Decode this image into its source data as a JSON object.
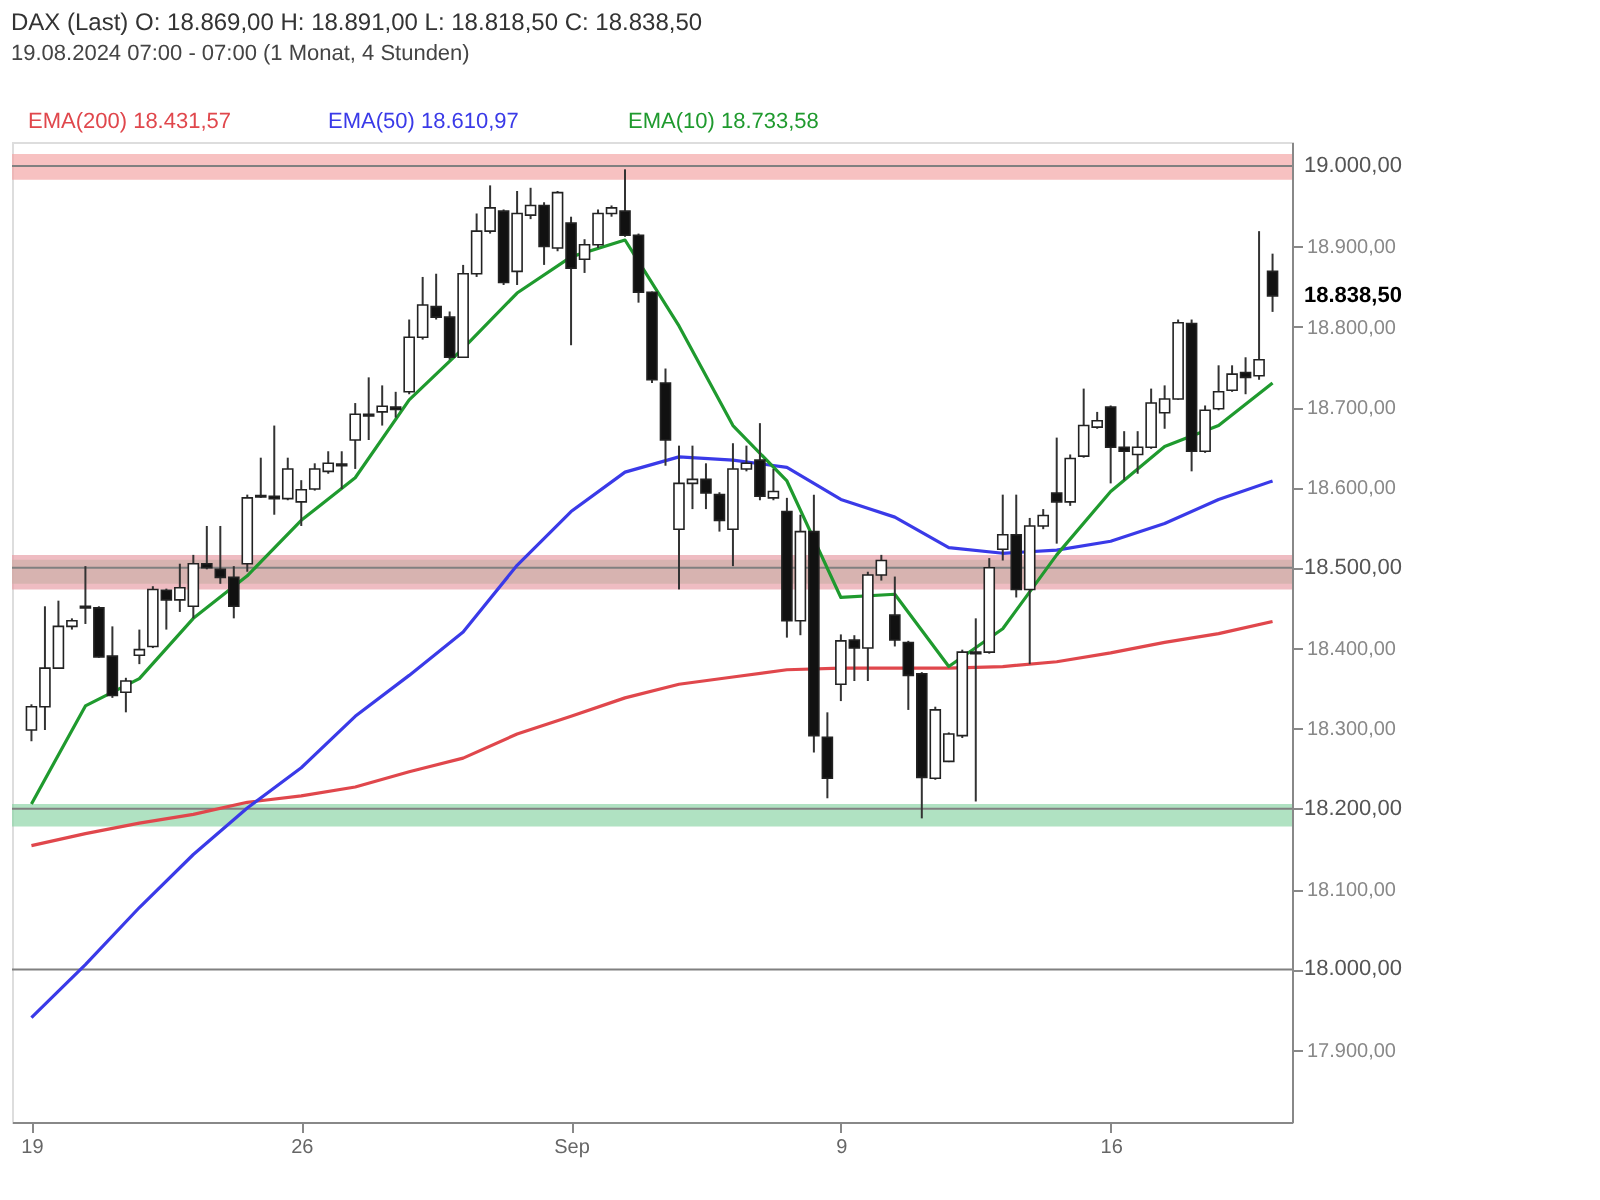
{
  "chart_data": {
    "type": "candlestick",
    "title": "DAX (Last)  O: 18.869,00  H: 18.891,00  L: 18.818,50  C: 18.838,50",
    "subtitle": "19.08.2024 07:00 - 07:00  (1 Monat, 4 Stunden)",
    "categories": [
      "19",
      null,
      null,
      null,
      null,
      null,
      null,
      null,
      null,
      null,
      null,
      null,
      null,
      null,
      null,
      null,
      null,
      null,
      null,
      null,
      "26",
      null,
      null,
      null,
      null,
      null,
      null,
      null,
      null,
      null,
      null,
      null,
      null,
      null,
      null,
      null,
      null,
      null,
      null,
      null,
      "Sep",
      null,
      null,
      null,
      null,
      null,
      null,
      null,
      null,
      null,
      null,
      null,
      null,
      null,
      null,
      null,
      null,
      null,
      null,
      null,
      "9",
      null,
      null,
      null,
      null,
      null,
      null,
      null,
      null,
      null,
      null,
      null,
      null,
      null,
      null,
      null,
      null,
      null,
      null,
      null,
      "16",
      null,
      null,
      null,
      null,
      null,
      null,
      null,
      null,
      null,
      null,
      null,
      null
    ],
    "ohlc": [
      [
        18298,
        18330,
        18284,
        18327
      ],
      [
        18327,
        18452,
        18298,
        18375
      ],
      [
        18375,
        18459,
        18375,
        18427
      ],
      [
        18427,
        18437,
        18423,
        18434
      ],
      [
        18450,
        18502,
        18430,
        18452
      ],
      [
        18450,
        18452,
        18388,
        18389
      ],
      [
        18390,
        18427,
        18338,
        18341
      ],
      [
        18345,
        18363,
        18320,
        18359
      ],
      [
        18391,
        18423,
        18380,
        18398
      ],
      [
        18402,
        18477,
        18400,
        18473
      ],
      [
        18472,
        18474,
        18423,
        18460
      ],
      [
        18460,
        18505,
        18445,
        18475
      ],
      [
        18452,
        18516,
        18437,
        18505
      ],
      [
        18505,
        18552,
        18498,
        18500
      ],
      [
        18498,
        18552,
        18480,
        18488
      ],
      [
        18488,
        18502,
        18437,
        18452
      ],
      [
        18505,
        18591,
        18495,
        18587
      ],
      [
        18590,
        18637,
        18587,
        18588
      ],
      [
        18589,
        18677,
        18566,
        18586
      ],
      [
        18586,
        18637,
        18584,
        18623
      ],
      [
        18582,
        18609,
        18552,
        18597
      ],
      [
        18598,
        18630,
        18596,
        18623
      ],
      [
        18620,
        18645,
        18617,
        18630
      ],
      [
        18629,
        18645,
        18598,
        18627
      ],
      [
        18659,
        18705,
        18623,
        18691
      ],
      [
        18689,
        18737,
        18659,
        18691
      ],
      [
        18694,
        18727,
        18677,
        18701
      ],
      [
        18700,
        18719,
        18687,
        18697
      ],
      [
        18719,
        18809,
        18716,
        18787
      ],
      [
        18787,
        18862,
        18784,
        18827
      ],
      [
        18825,
        18866,
        18809,
        18812
      ],
      [
        18812,
        18819,
        18759,
        18762
      ],
      [
        18762,
        18877,
        18762,
        18866
      ],
      [
        18866,
        18941,
        18862,
        18919
      ],
      [
        18919,
        18976,
        18916,
        18948
      ],
      [
        18944,
        18946,
        18852,
        18855
      ],
      [
        18869,
        18969,
        18852,
        18941
      ],
      [
        18939,
        18973,
        18934,
        18951
      ],
      [
        18951,
        18955,
        18877,
        18900
      ],
      [
        18898,
        18969,
        18894,
        18967
      ],
      [
        18929,
        18937,
        18777,
        18873
      ],
      [
        18884,
        18909,
        18867,
        18902
      ],
      [
        18902,
        18946,
        18898,
        18941
      ],
      [
        18941,
        18951,
        18937,
        18948
      ],
      [
        18944,
        18996,
        18912,
        18914
      ],
      [
        18914,
        18916,
        18830,
        18843
      ],
      [
        18843,
        18844,
        18730,
        18734
      ],
      [
        18730,
        18748,
        18627,
        18659
      ],
      [
        18548,
        18652,
        18473,
        18605
      ],
      [
        18605,
        18652,
        18573,
        18610
      ],
      [
        18610,
        18630,
        18573,
        18593
      ],
      [
        18591,
        18594,
        18545,
        18559
      ],
      [
        18548,
        18655,
        18502,
        18623
      ],
      [
        18623,
        18652,
        18620,
        18630
      ],
      [
        18634,
        18680,
        18584,
        18589
      ],
      [
        18587,
        18623,
        18584,
        18595
      ],
      [
        18570,
        18587,
        18413,
        18434
      ],
      [
        18434,
        18566,
        18416,
        18545
      ],
      [
        18545,
        18591,
        18270,
        18291
      ],
      [
        18289,
        18320,
        18213,
        18238
      ],
      [
        18355,
        18417,
        18334,
        18409
      ],
      [
        18410,
        18416,
        18359,
        18400
      ],
      [
        18400,
        18495,
        18359,
        18491
      ],
      [
        18491,
        18516,
        18484,
        18509
      ],
      [
        18441,
        18489,
        18402,
        18410
      ],
      [
        18407,
        18409,
        18323,
        18366
      ],
      [
        18368,
        18370,
        18188,
        18239
      ],
      [
        18238,
        18327,
        18236,
        18323
      ],
      [
        18259,
        18295,
        18258,
        18293
      ],
      [
        18291,
        18398,
        18288,
        18395
      ],
      [
        18393,
        18437,
        18209,
        18395
      ],
      [
        18395,
        18512,
        18393,
        18500
      ],
      [
        18523,
        18591,
        18509,
        18541
      ],
      [
        18541,
        18591,
        18463,
        18473
      ],
      [
        18473,
        18562,
        18380,
        18552
      ],
      [
        18552,
        18573,
        18548,
        18565
      ],
      [
        18593,
        18662,
        18530,
        18582
      ],
      [
        18582,
        18641,
        18577,
        18636
      ],
      [
        18639,
        18723,
        18637,
        18677
      ],
      [
        18675,
        18694,
        18673,
        18683
      ],
      [
        18700,
        18702,
        18605,
        18650
      ],
      [
        18650,
        18670,
        18609,
        18645
      ],
      [
        18641,
        18670,
        18617,
        18650
      ],
      [
        18650,
        18723,
        18648,
        18705
      ],
      [
        18693,
        18727,
        18673,
        18710
      ],
      [
        18710,
        18809,
        18709,
        18805
      ],
      [
        18804,
        18809,
        18620,
        18645
      ],
      [
        18645,
        18702,
        18643,
        18696
      ],
      [
        18698,
        18752,
        18696,
        18719
      ],
      [
        18721,
        18752,
        18719,
        18741
      ],
      [
        18743,
        18762,
        18716,
        18737
      ],
      [
        18739,
        18919,
        18734,
        18759
      ],
      [
        18869,
        18891,
        18818.5,
        18838.5
      ]
    ],
    "series": [
      {
        "name": "EMA(200) 18.431,57",
        "type": "line",
        "color": "#e0474c",
        "values": [
          18154,
          null,
          null,
          null,
          18169,
          null,
          null,
          null,
          18182,
          null,
          null,
          null,
          18193,
          null,
          null,
          null,
          18208,
          null,
          null,
          null,
          18216,
          null,
          null,
          null,
          18227,
          null,
          null,
          null,
          18246,
          null,
          null,
          null,
          18263,
          null,
          null,
          null,
          18293,
          null,
          null,
          null,
          18315,
          null,
          null,
          null,
          18338,
          null,
          null,
          null,
          18355,
          null,
          null,
          null,
          18364,
          null,
          null,
          null,
          18373,
          null,
          null,
          null,
          18375,
          null,
          null,
          null,
          18375,
          null,
          null,
          null,
          18375,
          null,
          null,
          null,
          18377,
          null,
          null,
          null,
          18383,
          null,
          null,
          null,
          18394,
          null,
          null,
          null,
          18407,
          null,
          null,
          null,
          18418,
          null,
          null,
          null,
          18433
        ]
      },
      {
        "name": "EMA(50) 18.610,97",
        "type": "line",
        "color": "#3a3ae8",
        "values": [
          17940,
          null,
          null,
          null,
          18006,
          null,
          null,
          null,
          18077,
          null,
          null,
          null,
          18143,
          null,
          null,
          null,
          18201,
          null,
          null,
          null,
          18251,
          null,
          null,
          null,
          18315,
          null,
          null,
          null,
          18366,
          null,
          null,
          null,
          18420,
          null,
          null,
          null,
          18503,
          null,
          null,
          null,
          18570,
          null,
          null,
          null,
          18619,
          null,
          null,
          null,
          18638,
          null,
          null,
          null,
          18634,
          null,
          null,
          null,
          18625,
          null,
          null,
          null,
          18585,
          null,
          null,
          null,
          18563,
          null,
          null,
          null,
          18525,
          null,
          null,
          null,
          18518,
          null,
          null,
          null,
          18522,
          null,
          null,
          null,
          18533,
          null,
          null,
          null,
          18555,
          null,
          null,
          null,
          18585,
          null,
          null,
          null,
          18608
        ]
      },
      {
        "name": "EMA(10) 18.733,58",
        "type": "line",
        "color": "#1f9a2e",
        "values": [
          18206,
          null,
          null,
          null,
          18328,
          null,
          null,
          null,
          18362,
          null,
          null,
          null,
          18437,
          null,
          null,
          null,
          18490,
          null,
          null,
          null,
          18559,
          null,
          null,
          null,
          18612,
          null,
          null,
          null,
          18709,
          null,
          null,
          null,
          18773,
          null,
          null,
          null,
          18842,
          null,
          null,
          null,
          18887,
          null,
          null,
          null,
          18908,
          null,
          null,
          null,
          18801,
          null,
          null,
          null,
          18677,
          null,
          null,
          null,
          18608,
          null,
          null,
          null,
          18463,
          null,
          null,
          null,
          18467,
          null,
          null,
          null,
          18377,
          null,
          null,
          null,
          18424,
          null,
          null,
          null,
          18516,
          null,
          null,
          null,
          18595,
          null,
          null,
          null,
          18651,
          null,
          null,
          null,
          18677,
          null,
          null,
          null,
          18730
        ]
      }
    ],
    "ylim": [
      17810,
      19030
    ],
    "yticks": [
      {
        "value": 17900,
        "label": "17.900,00"
      },
      {
        "value": 18000,
        "label": null
      },
      {
        "value": 18100,
        "label": "18.100,00"
      },
      {
        "value": 18200,
        "label": null
      },
      {
        "value": 18300,
        "label": "18.300,00"
      },
      {
        "value": 18400,
        "label": "18.400,00"
      },
      {
        "value": 18500,
        "label": null
      },
      {
        "value": 18600,
        "label": "18.600,00"
      },
      {
        "value": 18700,
        "label": "18.700,00"
      },
      {
        "value": 18800,
        "label": "18.800,00"
      },
      {
        "value": 18900,
        "label": "18.900,00"
      }
    ],
    "ref_lines": [
      {
        "axis": "y",
        "value": 19000,
        "label": "19.000,00",
        "color": "#808080"
      },
      {
        "axis": "y",
        "value": 18500,
        "label": "18.500,00",
        "color": "#808080"
      },
      {
        "axis": "y",
        "value": 18200,
        "label": "18.200,00",
        "color": "#808080"
      },
      {
        "axis": "y",
        "value": 18000,
        "label": "18.000,00",
        "color": "#808080"
      }
    ],
    "bands": [
      {
        "axis": "y",
        "from": 18983,
        "to": 19015,
        "color": "#f4a6a6"
      },
      {
        "axis": "y",
        "from": 18480,
        "to": 18510,
        "color": "#8fd6a8"
      },
      {
        "axis": "y",
        "from": 18473,
        "to": 18516,
        "color": "#e8a0a8"
      },
      {
        "axis": "y",
        "from": 18178,
        "to": 18206,
        "color": "#8fd6a8"
      }
    ],
    "annotations": [
      "18.838,50"
    ],
    "legend": "top left",
    "grid": false
  }
}
